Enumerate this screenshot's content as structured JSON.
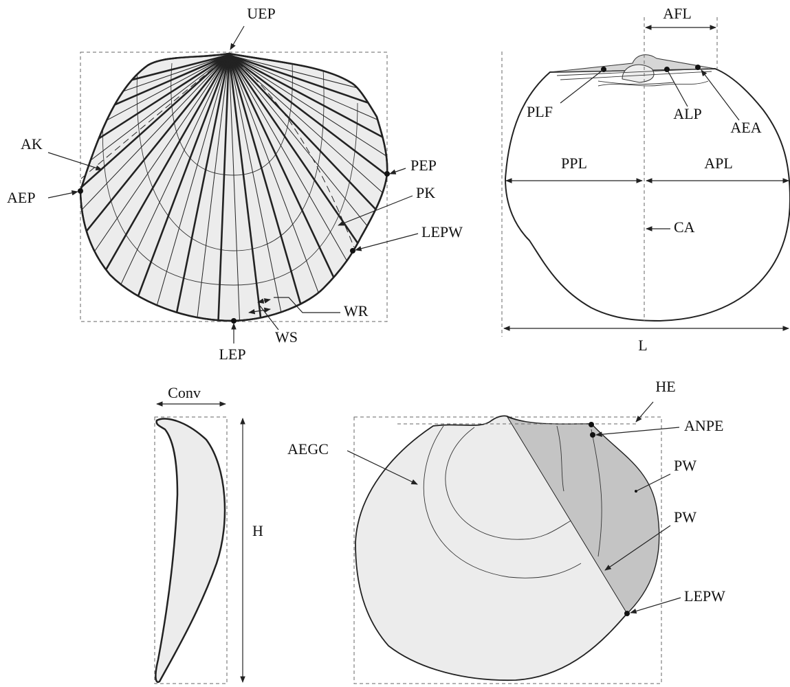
{
  "panels": [
    {
      "labels": [
        "UEP",
        "AK",
        "AEP",
        "PEP",
        "PK",
        "LEPW",
        "WR",
        "WS",
        "LEP"
      ]
    },
    {
      "labels": [
        "AFL",
        "PLF",
        "ALP",
        "AEA",
        "PPL",
        "APL",
        "CA",
        "L"
      ]
    },
    {
      "labels": [
        "Conv",
        "H"
      ]
    },
    {
      "labels": [
        "HE",
        "ANPE",
        "AEGC",
        "PW",
        "PW",
        "LEPW"
      ]
    }
  ]
}
